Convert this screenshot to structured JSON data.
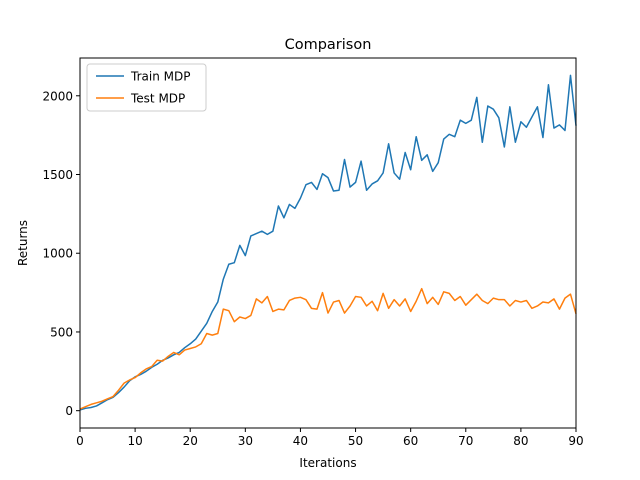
{
  "chart_data": {
    "type": "line",
    "title": "Comparison",
    "xlabel": "Iterations",
    "ylabel": "Returns",
    "xlim": [
      0,
      90
    ],
    "ylim": [
      -110,
      2240
    ],
    "xticks": [
      0,
      10,
      20,
      30,
      40,
      50,
      60,
      70,
      80,
      90
    ],
    "yticks": [
      0,
      500,
      1000,
      1500,
      2000
    ],
    "grid": false,
    "legend": "top-left",
    "x": [
      0,
      1,
      2,
      3,
      4,
      5,
      6,
      7,
      8,
      9,
      10,
      11,
      12,
      13,
      14,
      15,
      16,
      17,
      18,
      19,
      20,
      21,
      22,
      23,
      24,
      25,
      26,
      27,
      28,
      29,
      30,
      31,
      32,
      33,
      34,
      35,
      36,
      37,
      38,
      39,
      40,
      41,
      42,
      43,
      44,
      45,
      46,
      47,
      48,
      49,
      50,
      51,
      52,
      53,
      54,
      55,
      56,
      57,
      58,
      59,
      60,
      61,
      62,
      63,
      64,
      65,
      66,
      67,
      68,
      69,
      70,
      71,
      72,
      73,
      74,
      75,
      76,
      77,
      78,
      79,
      80,
      81,
      82,
      83,
      84,
      85,
      86,
      87,
      88,
      89,
      90
    ],
    "series": [
      {
        "name": "Train MDP",
        "color": "#1f77b4",
        "values": [
          5,
          15,
          20,
          30,
          50,
          70,
          85,
          115,
          150,
          190,
          215,
          230,
          250,
          275,
          295,
          320,
          335,
          355,
          370,
          400,
          425,
          455,
          505,
          555,
          630,
          690,
          835,
          930,
          940,
          1050,
          985,
          1110,
          1125,
          1140,
          1120,
          1140,
          1300,
          1225,
          1310,
          1285,
          1350,
          1435,
          1450,
          1405,
          1505,
          1480,
          1395,
          1400,
          1595,
          1420,
          1450,
          1585,
          1400,
          1440,
          1460,
          1510,
          1695,
          1510,
          1470,
          1640,
          1530,
          1740,
          1590,
          1625,
          1520,
          1575,
          1725,
          1755,
          1740,
          1845,
          1825,
          1845,
          1990,
          1705,
          1935,
          1915,
          1860,
          1675,
          1930,
          1705,
          1835,
          1800,
          1865,
          1930,
          1735,
          2070,
          1795,
          1815,
          1780,
          2130,
          1810
        ]
      },
      {
        "name": "Test MDP",
        "color": "#ff7f0e",
        "values": [
          10,
          25,
          40,
          50,
          60,
          75,
          90,
          130,
          175,
          195,
          210,
          240,
          265,
          280,
          320,
          315,
          345,
          370,
          355,
          385,
          395,
          405,
          425,
          490,
          480,
          490,
          645,
          635,
          565,
          595,
          585,
          605,
          710,
          685,
          725,
          630,
          645,
          640,
          700,
          715,
          720,
          705,
          650,
          645,
          750,
          620,
          690,
          700,
          620,
          665,
          725,
          720,
          665,
          695,
          635,
          745,
          650,
          705,
          665,
          710,
          630,
          695,
          775,
          680,
          720,
          675,
          755,
          745,
          700,
          725,
          670,
          705,
          740,
          700,
          680,
          715,
          705,
          705,
          665,
          700,
          690,
          700,
          650,
          665,
          690,
          685,
          710,
          645,
          715,
          740,
          615
        ]
      }
    ]
  }
}
